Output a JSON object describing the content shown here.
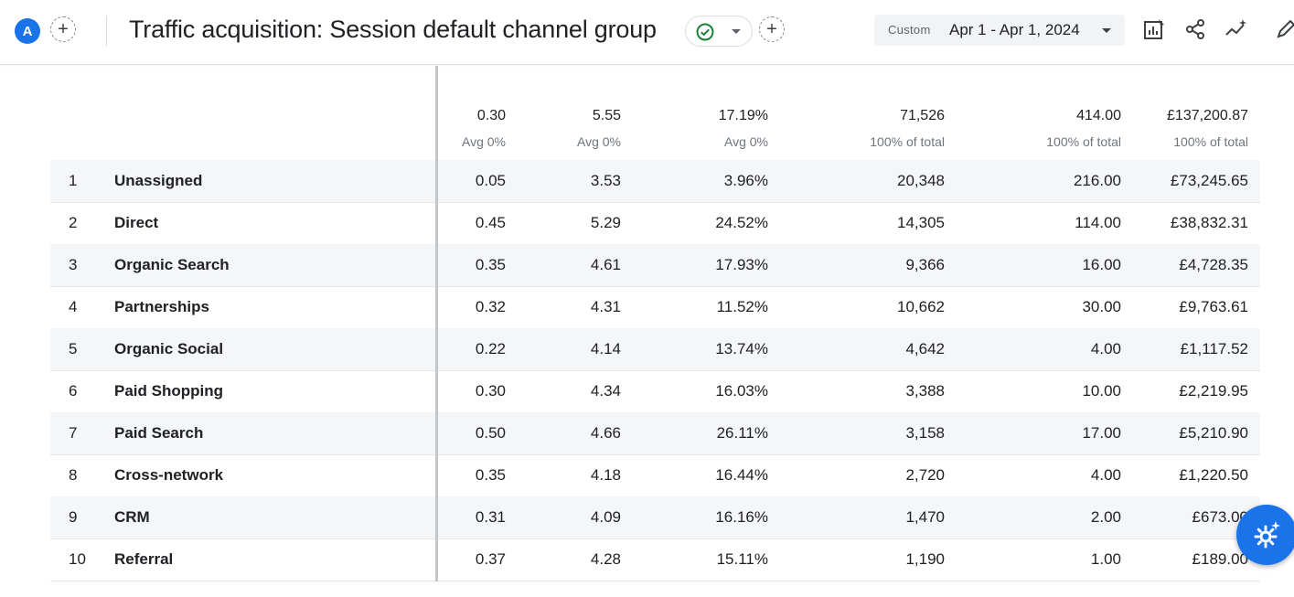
{
  "header": {
    "avatar_letter": "A",
    "title": "Traffic acquisition: Session default channel group",
    "date_chip_label": "Custom",
    "date_range": "Apr 1 - Apr 1, 2024",
    "icons": [
      "customize-report-icon",
      "share-icon",
      "insights-icon",
      "edit-icon"
    ]
  },
  "table": {
    "totals": [
      {
        "value": "0.30",
        "sub": "Avg 0%"
      },
      {
        "value": "5.55",
        "sub": "Avg 0%"
      },
      {
        "value": "17.19%",
        "sub": "Avg 0%"
      },
      {
        "value": "71,526",
        "sub": "100% of total"
      },
      {
        "value": "414.00",
        "sub": "100% of total"
      },
      {
        "value": "£137,200.87",
        "sub": "100% of total"
      }
    ],
    "rows": [
      {
        "rank": "1",
        "channel": "Unassigned",
        "cells": [
          "0.05",
          "3.53",
          "3.96%",
          "20,348",
          "216.00",
          "£73,245.65"
        ]
      },
      {
        "rank": "2",
        "channel": "Direct",
        "cells": [
          "0.45",
          "5.29",
          "24.52%",
          "14,305",
          "114.00",
          "£38,832.31"
        ]
      },
      {
        "rank": "3",
        "channel": "Organic Search",
        "cells": [
          "0.35",
          "4.61",
          "17.93%",
          "9,366",
          "16.00",
          "£4,728.35"
        ]
      },
      {
        "rank": "4",
        "channel": "Partnerships",
        "cells": [
          "0.32",
          "4.31",
          "11.52%",
          "10,662",
          "30.00",
          "£9,763.61"
        ]
      },
      {
        "rank": "5",
        "channel": "Organic Social",
        "cells": [
          "0.22",
          "4.14",
          "13.74%",
          "4,642",
          "4.00",
          "£1,117.52"
        ]
      },
      {
        "rank": "6",
        "channel": "Paid Shopping",
        "cells": [
          "0.30",
          "4.34",
          "16.03%",
          "3,388",
          "10.00",
          "£2,219.95"
        ]
      },
      {
        "rank": "7",
        "channel": "Paid Search",
        "cells": [
          "0.50",
          "4.66",
          "26.11%",
          "3,158",
          "17.00",
          "£5,210.90"
        ]
      },
      {
        "rank": "8",
        "channel": "Cross-network",
        "cells": [
          "0.35",
          "4.18",
          "16.44%",
          "2,720",
          "4.00",
          "£1,220.50"
        ]
      },
      {
        "rank": "9",
        "channel": "CRM",
        "cells": [
          "0.31",
          "4.09",
          "16.16%",
          "1,470",
          "2.00",
          "£673.00"
        ]
      },
      {
        "rank": "10",
        "channel": "Referral",
        "cells": [
          "0.37",
          "4.28",
          "15.11%",
          "1,190",
          "1.00",
          "£189.00"
        ]
      }
    ]
  },
  "colors": {
    "accent": "#1a73e8",
    "band": "#f5f6f7"
  }
}
